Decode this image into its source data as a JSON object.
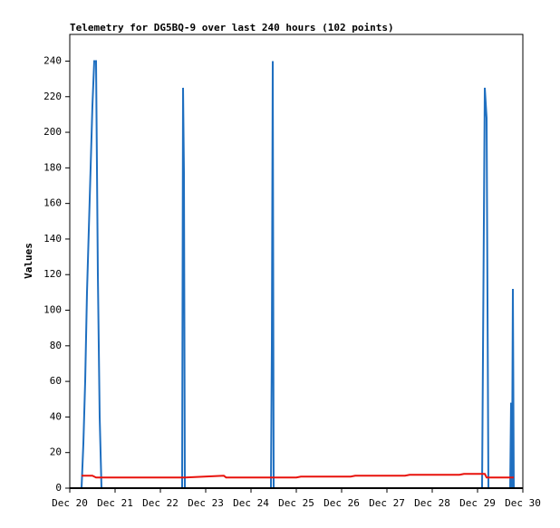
{
  "chart_data": {
    "type": "line",
    "title": "Telemetry for DG5BQ-9 over last 240 hours (102 points)",
    "y_label": "Values",
    "x": [
      20.26,
      20.3,
      20.34,
      20.38,
      20.42,
      20.46,
      20.5,
      20.54,
      20.58,
      20.62,
      20.66,
      20.7,
      21.5,
      22.48,
      22.5,
      22.52,
      22.54,
      23.4,
      23.45,
      24.44,
      24.46,
      24.48,
      24.5,
      25,
      25.1,
      26.2,
      26.3,
      27.4,
      27.5,
      28.6,
      28.7,
      29.1,
      29.16,
      29.2,
      29.24,
      29.72,
      29.74,
      29.76,
      29.78,
      29.8
    ],
    "series": [
      {
        "name": "blue",
        "color": "#1f6fc0",
        "values": [
          0,
          25,
          60,
          110,
          145,
          180,
          215,
          240,
          240,
          120,
          40,
          0,
          0,
          0,
          225,
          177,
          0,
          0,
          0,
          0,
          80,
          240,
          0,
          0,
          0,
          0,
          0,
          0,
          0,
          0,
          0,
          0,
          225,
          208,
          0,
          0,
          48,
          0,
          112,
          0
        ]
      },
      {
        "name": "red",
        "color": "#e8120c",
        "values": [
          7,
          7,
          7,
          7,
          7,
          7,
          7,
          6.5,
          6,
          6,
          6,
          6,
          6,
          6,
          6,
          6,
          6,
          7,
          6,
          6,
          6,
          6,
          6,
          6,
          6.5,
          6.5,
          7,
          7,
          7.5,
          7.5,
          8,
          8,
          8,
          6,
          6,
          6,
          6,
          6,
          6,
          6
        ]
      }
    ],
    "xlim": [
      20,
      30
    ],
    "xticks": [
      {
        "value": 20,
        "label": "Dec 20"
      },
      {
        "value": 21,
        "label": "Dec 21"
      },
      {
        "value": 22,
        "label": "Dec 22"
      },
      {
        "value": 23,
        "label": "Dec 23"
      },
      {
        "value": 24,
        "label": "Dec 24"
      },
      {
        "value": 25,
        "label": "Dec 25"
      },
      {
        "value": 26,
        "label": "Dec 26"
      },
      {
        "value": 27,
        "label": "Dec 27"
      },
      {
        "value": 28,
        "label": "Dec 28"
      },
      {
        "value": 29,
        "label": "Dec 29"
      },
      {
        "value": 30,
        "label": "Dec 30"
      }
    ],
    "ylim": [
      0,
      255
    ],
    "yticks": [
      0,
      20,
      40,
      60,
      80,
      100,
      120,
      140,
      160,
      180,
      200,
      220,
      240
    ]
  }
}
